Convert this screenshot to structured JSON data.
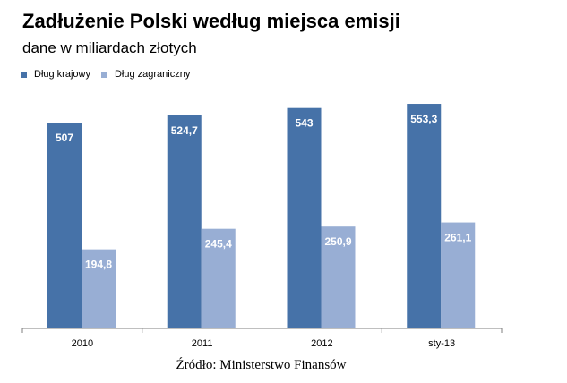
{
  "colors": {
    "domestic": "#4672a8",
    "foreign": "#98aed4",
    "axis": "#7f7f7f"
  },
  "chart_data": {
    "type": "bar",
    "title": "Zadłużenie Polski według miejsca emisji",
    "subtitle": "dane w miliardach złotych",
    "categories": [
      "2010",
      "2011",
      "2012",
      "sty-13"
    ],
    "series": [
      {
        "name": "Dług krajowy",
        "values": [
          507,
          524.7,
          543,
          553.3
        ],
        "labels": [
          "507",
          "524,7",
          "543",
          "553,3"
        ]
      },
      {
        "name": "Dług zagraniczny",
        "values": [
          194.8,
          245.4,
          250.9,
          261.1
        ],
        "labels": [
          "194,8",
          "245,4",
          "250,9",
          "261,1"
        ]
      }
    ],
    "ylim": [
      0,
      600
    ],
    "grid": false,
    "legend": "top-left"
  },
  "source": "Źródło: Ministerstwo Finansów"
}
